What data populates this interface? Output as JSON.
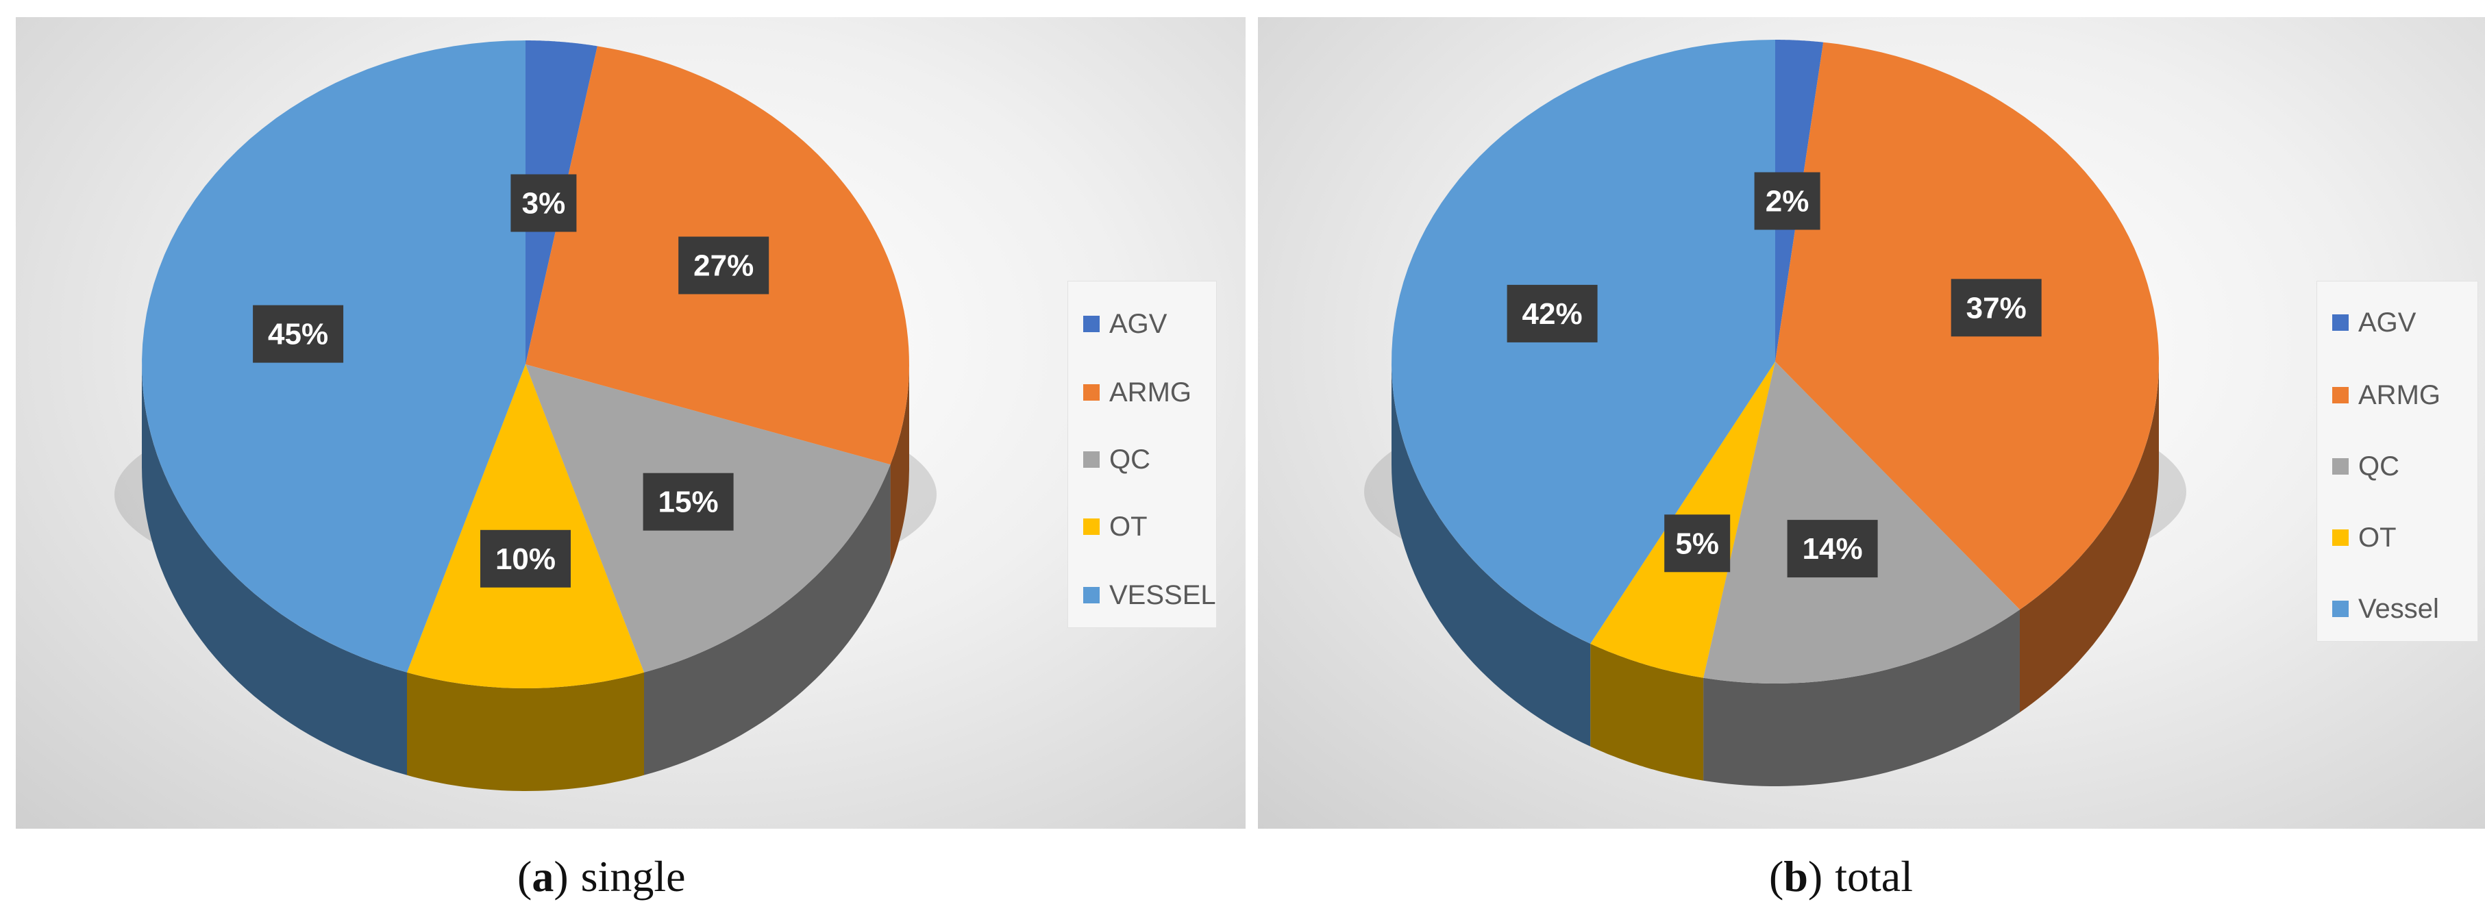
{
  "chart_data": [
    {
      "type": "pie",
      "categories": [
        "AGV",
        "ARMG",
        "QC",
        "OT",
        "VESSEL"
      ],
      "values": [
        3,
        27,
        15,
        10,
        45
      ],
      "labels": [
        "3%",
        "27%",
        "15%",
        "10%",
        "45%"
      ],
      "colors": [
        "#4472c4",
        "#ed7d31",
        "#a5a5a5",
        "#ffc000",
        "#5b9bd5"
      ],
      "legend_placement": "right",
      "three_d": true
    },
    {
      "type": "pie",
      "categories": [
        "AGV",
        "ARMG",
        "QC",
        "OT",
        "Vessel"
      ],
      "values": [
        2,
        37,
        14,
        5,
        42
      ],
      "labels": [
        "2%",
        "37%",
        "14%",
        "5%",
        "42%"
      ],
      "colors": [
        "#4472c4",
        "#ed7d31",
        "#a5a5a5",
        "#ffc000",
        "#5b9bd5"
      ],
      "legend_placement": "right",
      "three_d": true
    }
  ],
  "captions": [
    {
      "tag_open": "(",
      "tag_letter": "a",
      "tag_close": ")",
      "text": "single"
    },
    {
      "tag_open": "(",
      "tag_letter": "b",
      "tag_close": ")",
      "text": "total"
    }
  ]
}
